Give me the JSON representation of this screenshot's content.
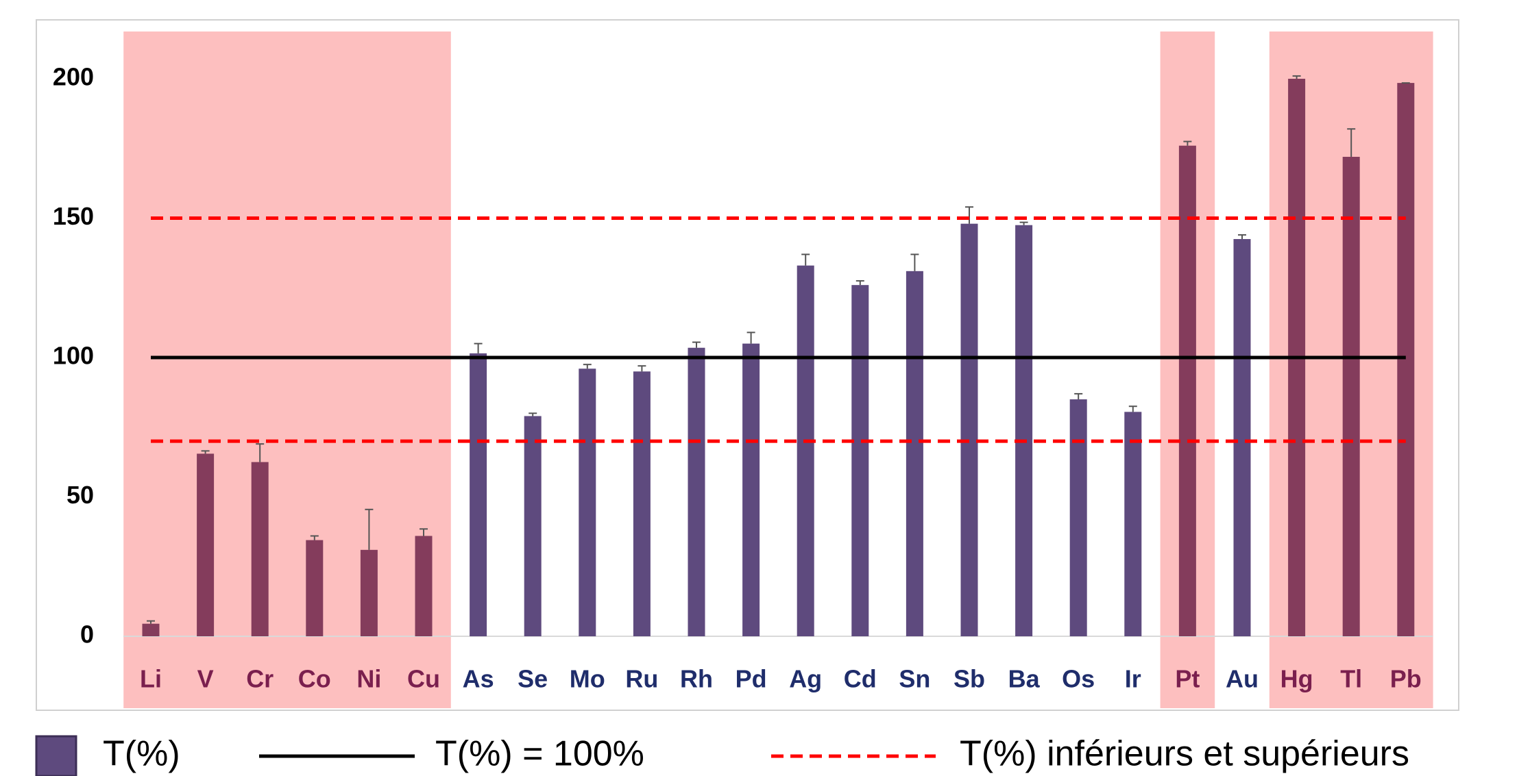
{
  "chart_data": {
    "type": "bar",
    "categories": [
      "Li",
      "V",
      "Cr",
      "Co",
      "Ni",
      "Cu",
      "As",
      "Se",
      "Mo",
      "Ru",
      "Rh",
      "Pd",
      "Ag",
      "Cd",
      "Sn",
      "Sb",
      "Ba",
      "Os",
      "Ir",
      "Pt",
      "Au",
      "Hg",
      "Tl",
      "Pb"
    ],
    "highlighted": [
      true,
      true,
      true,
      true,
      true,
      true,
      false,
      false,
      false,
      false,
      false,
      false,
      false,
      false,
      false,
      false,
      false,
      false,
      false,
      true,
      false,
      true,
      true,
      true
    ],
    "highlight_color": "#fdbfbf",
    "label_colors": {
      "highlighted": "#7a1f4e",
      "normal": "#1f2d6b"
    },
    "series": [
      {
        "name": "T(%)",
        "color": "#5e4a7e",
        "highlight_color": "#843c5c",
        "values": [
          4.5,
          65.5,
          62.5,
          34.5,
          31,
          36,
          101.5,
          79,
          96,
          95,
          103.5,
          105,
          133,
          126,
          131,
          148,
          147.5,
          85,
          80.5,
          176,
          142.5,
          200,
          172,
          198.5
        ],
        "errors": [
          1,
          1,
          6.5,
          1.5,
          14.5,
          2.5,
          3.5,
          1,
          1.5,
          2,
          2,
          4,
          4,
          1.5,
          6,
          6,
          1,
          2,
          2,
          1.5,
          1.5,
          1,
          10,
          0
        ]
      }
    ],
    "reference_lines": [
      {
        "name": "T(%) = 100%",
        "values": [
          100
        ],
        "color": "#000000",
        "dashed": false
      },
      {
        "name": "T(%) inférieurs et supérieurs",
        "values": [
          70,
          150
        ],
        "color": "#ff0000",
        "dashed": true
      }
    ],
    "ylim": [
      0,
      200
    ],
    "yticks": [
      0,
      50,
      100,
      150,
      200
    ],
    "grid": false
  }
}
